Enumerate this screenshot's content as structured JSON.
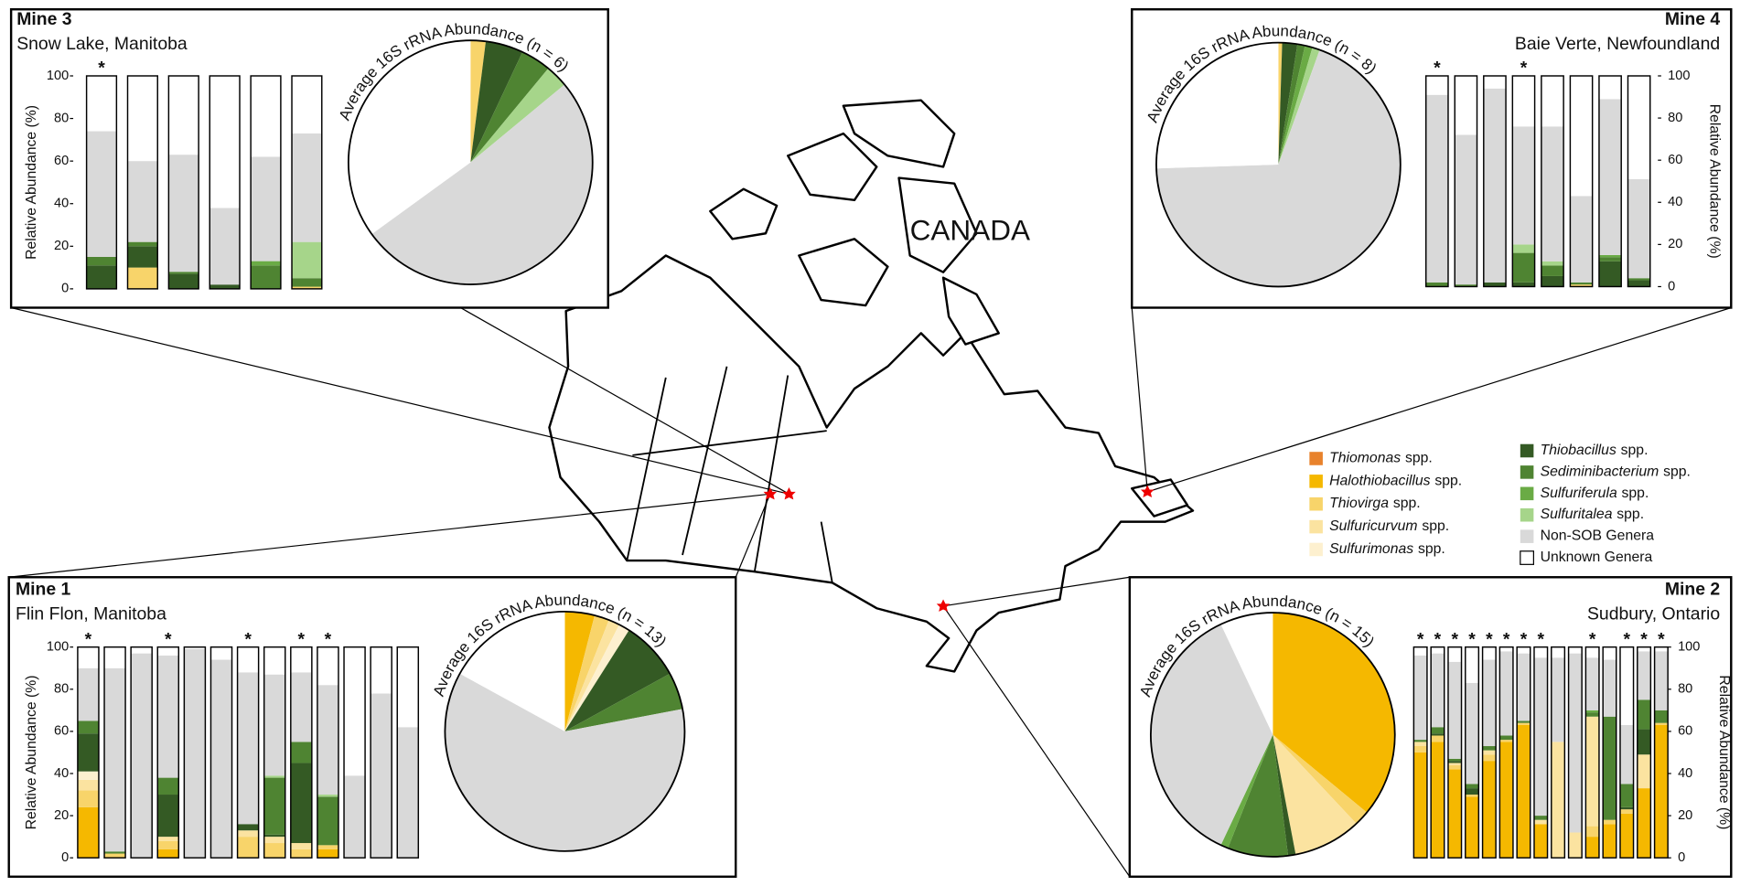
{
  "legend": [
    {
      "name": "Thiomonas",
      "suffix": "spp.",
      "italic": true,
      "color": "#e8822c"
    },
    {
      "name": "Halothiobacillus",
      "suffix": "spp.",
      "italic": true,
      "color": "#f5b800"
    },
    {
      "name": "Thiovirga",
      "suffix": "spp.",
      "italic": true,
      "color": "#f8d46a"
    },
    {
      "name": "Sulfuricurvum",
      "suffix": "spp.",
      "italic": true,
      "color": "#fbe3a0"
    },
    {
      "name": "Sulfurimonas",
      "suffix": "spp.",
      "italic": true,
      "color": "#fdf0cf"
    },
    {
      "name": "Thiobacillus",
      "suffix": "spp.",
      "italic": true,
      "color": "#345a24"
    },
    {
      "name": "Sediminibacterium",
      "suffix": "spp.",
      "italic": true,
      "color": "#4f8432"
    },
    {
      "name": "Sulfuriferula",
      "suffix": "spp.",
      "italic": true,
      "color": "#6aab45"
    },
    {
      "name": "Sulfuritalea",
      "suffix": "spp.",
      "italic": true,
      "color": "#a6d58a"
    },
    {
      "name": "Non-SOB Genera",
      "italic": false,
      "color": "#d9d9d9"
    },
    {
      "name": "Unknown Genera",
      "italic": false,
      "color": "#ffffff"
    }
  ],
  "map_label": "CANADA",
  "chart_data": [
    {
      "type": "stacked-bar",
      "title": "Mine 3",
      "subtitle": "Snow Lake, Manitoba",
      "y_label": "Relative Abundance (%)",
      "y_axis_side": "left",
      "ylim": [
        0,
        100
      ],
      "yticks": [
        0,
        20,
        40,
        60,
        80,
        100
      ],
      "bar_labels": [
        "*",
        null,
        null,
        null,
        null,
        null
      ],
      "stacks": [
        [
          0,
          0,
          0,
          0,
          0,
          11,
          4,
          0,
          0,
          59,
          26
        ],
        [
          0,
          0,
          10,
          0,
          0,
          10,
          2,
          0,
          0,
          38,
          40
        ],
        [
          0,
          0,
          0,
          0,
          0,
          7,
          1,
          0,
          0,
          55,
          37
        ],
        [
          0,
          0,
          0,
          0,
          0,
          2,
          0,
          0,
          0,
          36,
          62
        ],
        [
          0,
          0,
          0,
          0,
          0,
          0,
          11,
          2,
          0,
          49,
          38
        ],
        [
          0,
          0,
          1,
          0,
          0,
          0,
          4,
          0,
          17,
          51,
          27
        ]
      ],
      "pie": {
        "type": "pie",
        "title": "Average 16S rRNA Abundance (n = 6)",
        "values": [
          0,
          0,
          2,
          0,
          0,
          5,
          4,
          0,
          3,
          51,
          35
        ]
      }
    },
    {
      "type": "stacked-bar",
      "title": "Mine 4",
      "subtitle": "Baie Verte, Newfoundland",
      "y_label": "Relative Abundance (%)",
      "y_axis_side": "right",
      "ylim": [
        0,
        100
      ],
      "yticks": [
        0,
        20,
        40,
        60,
        80,
        100
      ],
      "bar_labels": [
        "*",
        null,
        null,
        "*",
        null,
        null,
        null,
        null
      ],
      "stacks": [
        [
          0,
          0,
          0,
          0,
          0,
          0,
          2,
          0,
          0,
          89,
          9
        ],
        [
          0,
          0,
          0,
          0,
          0,
          0,
          1,
          0,
          0,
          71,
          28
        ],
        [
          0,
          0,
          0,
          0,
          0,
          2,
          0,
          0,
          0,
          92,
          6
        ],
        [
          0,
          0,
          0,
          0,
          0,
          2,
          14,
          0,
          4,
          56,
          24
        ],
        [
          0,
          0,
          0,
          0,
          0,
          5,
          5,
          0,
          2,
          64,
          24
        ],
        [
          0,
          0,
          1,
          0,
          0,
          0,
          1,
          0,
          0,
          41,
          57
        ],
        [
          0,
          0,
          0,
          0,
          0,
          12,
          2,
          1,
          0,
          74,
          11
        ],
        [
          0,
          0,
          0,
          0,
          0,
          3,
          1,
          0,
          0,
          47,
          49
        ]
      ],
      "pie": {
        "type": "pie",
        "title": "Average 16S rRNA Abundance (n = 8)",
        "values": [
          0,
          0,
          0.5,
          0,
          0,
          2,
          1,
          1,
          1,
          69,
          25.5
        ]
      }
    },
    {
      "type": "stacked-bar",
      "title": "Mine 1",
      "subtitle": "Flin Flon, Manitoba",
      "y_label": "Relative Abundance (%)",
      "y_axis_side": "left",
      "ylim": [
        0,
        100
      ],
      "yticks": [
        0,
        20,
        40,
        60,
        80,
        100
      ],
      "bar_labels": [
        "*",
        null,
        null,
        "*",
        null,
        null,
        "*",
        null,
        "*",
        "*",
        null,
        null,
        null
      ],
      "stacks": [
        [
          0,
          24,
          8,
          5,
          4,
          18,
          6,
          0,
          0,
          25,
          10
        ],
        [
          0,
          0,
          2,
          0,
          0,
          0,
          1,
          0,
          0,
          87,
          10
        ],
        [
          0,
          0,
          0,
          0,
          0,
          0,
          0,
          0,
          0,
          97,
          3
        ],
        [
          0,
          4,
          4,
          2,
          0,
          20,
          8,
          0,
          0,
          58,
          4
        ],
        [
          0,
          0,
          0,
          0,
          0,
          0,
          0,
          0,
          0,
          99,
          1
        ],
        [
          0,
          0,
          0,
          0,
          0,
          0,
          0,
          0,
          0,
          94,
          6
        ],
        [
          0,
          0,
          10,
          3,
          0,
          3,
          0,
          0,
          0,
          72,
          12
        ],
        [
          0,
          0,
          7,
          3,
          0,
          1,
          27,
          0,
          1,
          48,
          13
        ],
        [
          0,
          0,
          4,
          3,
          0,
          38,
          10,
          0,
          0,
          33,
          12
        ],
        [
          0,
          4,
          2,
          0,
          0,
          0,
          23,
          0,
          1,
          52,
          18
        ],
        [
          0,
          0,
          0,
          0,
          0,
          0,
          0,
          0,
          0,
          39,
          61
        ],
        [
          0,
          0,
          0,
          0,
          0,
          0,
          0,
          0,
          0,
          78,
          22
        ],
        [
          0,
          0,
          0,
          0,
          0,
          0,
          0,
          0,
          0,
          62,
          38
        ]
      ],
      "pie": {
        "type": "pie",
        "title": "Average 16S rRNA Abundance (n = 13)",
        "values": [
          0,
          4,
          2,
          1.5,
          1.5,
          8,
          5,
          0,
          0,
          61,
          17
        ]
      }
    },
    {
      "type": "stacked-bar",
      "title": "Mine 2",
      "subtitle": "Sudbury, Ontario",
      "y_label": "Relative Abundance (%)",
      "y_axis_side": "right",
      "ylim": [
        0,
        100
      ],
      "yticks": [
        0,
        20,
        40,
        60,
        80,
        100
      ],
      "bar_labels": [
        "*",
        "*",
        "*",
        "*",
        "*",
        "*",
        "*",
        "*",
        null,
        null,
        "*",
        null,
        "*",
        "*",
        "*"
      ],
      "stacks": [
        [
          0,
          50,
          3,
          2,
          0,
          0,
          1,
          0,
          0,
          40,
          4
        ],
        [
          0,
          55,
          3,
          0,
          0,
          1,
          3,
          0,
          0,
          35,
          3
        ],
        [
          0,
          42,
          2,
          1,
          0,
          1,
          1,
          0,
          0,
          46,
          7
        ],
        [
          0,
          29,
          1,
          0,
          0,
          3,
          2,
          0,
          0,
          48,
          17
        ],
        [
          0,
          46,
          3,
          2,
          0,
          0,
          2,
          0,
          0,
          41,
          6
        ],
        [
          0,
          55,
          1,
          0,
          0,
          0,
          2,
          0,
          0,
          40,
          2
        ],
        [
          0,
          63,
          1,
          0,
          0,
          0,
          1,
          0,
          0,
          32,
          3
        ],
        [
          0,
          16,
          0,
          2,
          0,
          0,
          2,
          0,
          0,
          75,
          5
        ],
        [
          0,
          0,
          0,
          55,
          0,
          0,
          0,
          0,
          0,
          40,
          5
        ],
        [
          0,
          0,
          0,
          12,
          0,
          0,
          0,
          0,
          0,
          85,
          3
        ],
        [
          0,
          10,
          5,
          52,
          0,
          0,
          2,
          1,
          0,
          25,
          5
        ],
        [
          0,
          16,
          2,
          0,
          0,
          0,
          49,
          0,
          0,
          27,
          6
        ],
        [
          0,
          21,
          2,
          0,
          0,
          1,
          11,
          0,
          0,
          28,
          37
        ],
        [
          0,
          33,
          0,
          16,
          0,
          12,
          14,
          0,
          0,
          23,
          2
        ],
        [
          0,
          63,
          1,
          0,
          0,
          0,
          6,
          0,
          0,
          28,
          2
        ]
      ],
      "pie": {
        "type": "pie",
        "title": "Average 16S rRNA Abundance (n = 15)",
        "values": [
          0,
          36,
          2,
          9,
          0,
          1,
          8,
          1,
          0,
          36,
          7
        ]
      }
    }
  ]
}
